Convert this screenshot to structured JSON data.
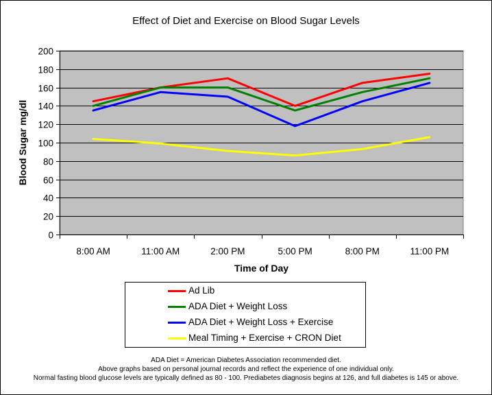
{
  "chart_data": {
    "type": "line",
    "title": "Effect of Diet and Exercise on Blood Sugar Levels",
    "xlabel": "Time of Day",
    "ylabel": "Blood Sugar mg/dl",
    "categories": [
      "8:00 AM",
      "11:00 AM",
      "2:00 PM",
      "5:00 PM",
      "8:00 PM",
      "11:00 PM"
    ],
    "ylim": [
      0,
      200
    ],
    "yticks": [
      0,
      20,
      40,
      60,
      80,
      100,
      120,
      140,
      160,
      180,
      200
    ],
    "grid": true,
    "plot_background": "#C0C0C0",
    "series": [
      {
        "name": "Ad Lib",
        "color": "#FF0000",
        "values": [
          145,
          160,
          170,
          140,
          165,
          175
        ]
      },
      {
        "name": "ADA Diet + Weight Loss",
        "color": "#008000",
        "values": [
          140,
          160,
          160,
          135,
          155,
          170
        ]
      },
      {
        "name": "ADA Diet + Weight Loss + Exercise",
        "color": "#0000FF",
        "values": [
          135,
          155,
          150,
          118,
          145,
          165
        ]
      },
      {
        "name": "Meal Timing + Exercise + CRON Diet",
        "color": "#FFFF00",
        "values": [
          104,
          99,
          91,
          86,
          93,
          106
        ]
      }
    ],
    "legend_position": "bottom"
  },
  "notes": [
    "ADA Diet = American Diabetes Association recommended diet.",
    "Above graphs based on personal journal records and reflect the experience of one individual only.",
    "Normal fasting blood glucose levels are typically defined as 80 - 100. Prediabetes diagnosis begins at 126, and full diabetes is 145 or above."
  ]
}
